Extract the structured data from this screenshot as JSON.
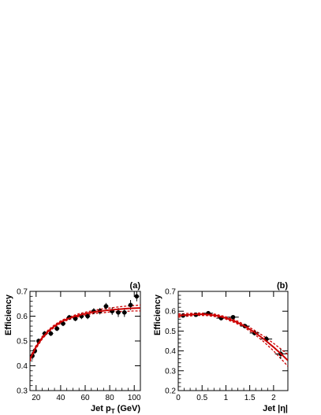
{
  "chart_data": [
    {
      "type": "scatter",
      "panel_label": "(a)",
      "xlabel": "Jet p",
      "xlabel_sub": "T",
      "xlabel_unit": " (GeV)",
      "ylabel": "Efficiency",
      "xlim": [
        15,
        105
      ],
      "ylim": [
        0.3,
        0.7
      ],
      "xticks": [
        20,
        40,
        60,
        80,
        100
      ],
      "yticks": [
        0.3,
        0.4,
        0.5,
        0.6,
        0.7
      ],
      "xtick_labels": [
        "20",
        "40",
        "60",
        "80",
        "100"
      ],
      "ytick_labels": [
        "0.3",
        "0.4",
        "0.5",
        "0.6",
        "0.7"
      ],
      "points": [
        {
          "x": 17,
          "y": 0.44,
          "yerr": 0.015,
          "xerr": 1.2
        },
        {
          "x": 19,
          "y": 0.46,
          "yerr": 0.012,
          "xerr": 1.2
        },
        {
          "x": 22,
          "y": 0.5,
          "yerr": 0.01,
          "xerr": 1.5
        },
        {
          "x": 27,
          "y": 0.53,
          "yerr": 0.01,
          "xerr": 2.0
        },
        {
          "x": 32,
          "y": 0.53,
          "yerr": 0.01,
          "xerr": 2.0
        },
        {
          "x": 37,
          "y": 0.55,
          "yerr": 0.01,
          "xerr": 2.0
        },
        {
          "x": 42,
          "y": 0.57,
          "yerr": 0.01,
          "xerr": 2.0
        },
        {
          "x": 47,
          "y": 0.595,
          "yerr": 0.01,
          "xerr": 2.0
        },
        {
          "x": 52,
          "y": 0.59,
          "yerr": 0.01,
          "xerr": 2.0
        },
        {
          "x": 57,
          "y": 0.6,
          "yerr": 0.012,
          "xerr": 2.0
        },
        {
          "x": 62,
          "y": 0.6,
          "yerr": 0.012,
          "xerr": 2.0
        },
        {
          "x": 67,
          "y": 0.62,
          "yerr": 0.012,
          "xerr": 2.0
        },
        {
          "x": 72,
          "y": 0.62,
          "yerr": 0.013,
          "xerr": 2.0
        },
        {
          "x": 77,
          "y": 0.64,
          "yerr": 0.013,
          "xerr": 2.0
        },
        {
          "x": 82,
          "y": 0.62,
          "yerr": 0.015,
          "xerr": 2.0
        },
        {
          "x": 87,
          "y": 0.615,
          "yerr": 0.018,
          "xerr": 2.0
        },
        {
          "x": 92,
          "y": 0.615,
          "yerr": 0.018,
          "xerr": 2.0
        },
        {
          "x": 97,
          "y": 0.645,
          "yerr": 0.02,
          "xerr": 2.0
        },
        {
          "x": 102,
          "y": 0.68,
          "yerr": 0.02,
          "xerr": 2.0
        }
      ],
      "fit": {
        "x": [
          15,
          17,
          20,
          25,
          30,
          35,
          40,
          45,
          50,
          55,
          60,
          65,
          70,
          75,
          80,
          85,
          90,
          95,
          100,
          105
        ],
        "y": [
          0.425,
          0.447,
          0.476,
          0.513,
          0.54,
          0.56,
          0.576,
          0.588,
          0.597,
          0.604,
          0.61,
          0.615,
          0.619,
          0.622,
          0.625,
          0.627,
          0.629,
          0.631,
          0.632,
          0.633
        ],
        "band_upper": [
          0.432,
          0.454,
          0.482,
          0.518,
          0.545,
          0.565,
          0.581,
          0.593,
          0.602,
          0.61,
          0.616,
          0.621,
          0.626,
          0.63,
          0.633,
          0.636,
          0.639,
          0.641,
          0.643,
          0.645
        ],
        "band_lower": [
          0.418,
          0.44,
          0.47,
          0.508,
          0.535,
          0.555,
          0.571,
          0.583,
          0.592,
          0.598,
          0.604,
          0.609,
          0.612,
          0.614,
          0.617,
          0.618,
          0.619,
          0.62,
          0.621,
          0.621
        ]
      },
      "colors": {
        "points": "#000000",
        "fit": "#cc0000",
        "band": "#cc0000"
      }
    },
    {
      "type": "scatter",
      "panel_label": "(b)",
      "xlabel": "Jet |η|",
      "ylabel": "Efficiency",
      "xlim": [
        0,
        2.3
      ],
      "ylim": [
        0.2,
        0.7
      ],
      "xticks": [
        0,
        0.5,
        1,
        1.5,
        2
      ],
      "yticks": [
        0.2,
        0.3,
        0.4,
        0.5,
        0.6,
        0.7
      ],
      "xtick_labels": [
        "0",
        "0.5",
        "1",
        "1.5",
        "2"
      ],
      "ytick_labels": [
        "0.2",
        "0.3",
        "0.4",
        "0.5",
        "0.6",
        "0.7"
      ],
      "points": [
        {
          "x": 0.1,
          "y": 0.578,
          "yerr": 0.008,
          "xerr": 0.1
        },
        {
          "x": 0.37,
          "y": 0.582,
          "yerr": 0.008,
          "xerr": 0.1
        },
        {
          "x": 0.63,
          "y": 0.59,
          "yerr": 0.008,
          "xerr": 0.1
        },
        {
          "x": 0.9,
          "y": 0.565,
          "yerr": 0.008,
          "xerr": 0.1
        },
        {
          "x": 1.15,
          "y": 0.57,
          "yerr": 0.01,
          "xerr": 0.12
        },
        {
          "x": 1.4,
          "y": 0.525,
          "yerr": 0.01,
          "xerr": 0.1
        },
        {
          "x": 1.6,
          "y": 0.49,
          "yerr": 0.012,
          "xerr": 0.1
        },
        {
          "x": 1.85,
          "y": 0.46,
          "yerr": 0.015,
          "xerr": 0.12
        },
        {
          "x": 2.15,
          "y": 0.385,
          "yerr": 0.025,
          "xerr": 0.12
        }
      ],
      "fit": {
        "x": [
          0,
          0.2,
          0.4,
          0.6,
          0.8,
          1.0,
          1.2,
          1.4,
          1.6,
          1.8,
          2.0,
          2.2,
          2.3
        ],
        "y": [
          0.578,
          0.582,
          0.585,
          0.584,
          0.578,
          0.566,
          0.548,
          0.524,
          0.494,
          0.459,
          0.419,
          0.375,
          0.352
        ],
        "band_upper": [
          0.586,
          0.589,
          0.591,
          0.59,
          0.584,
          0.572,
          0.555,
          0.532,
          0.504,
          0.473,
          0.438,
          0.401,
          0.382
        ],
        "band_lower": [
          0.57,
          0.575,
          0.579,
          0.578,
          0.572,
          0.56,
          0.541,
          0.516,
          0.484,
          0.445,
          0.4,
          0.349,
          0.322
        ]
      },
      "colors": {
        "points": "#000000",
        "fit": "#cc0000",
        "band": "#cc0000"
      }
    }
  ]
}
